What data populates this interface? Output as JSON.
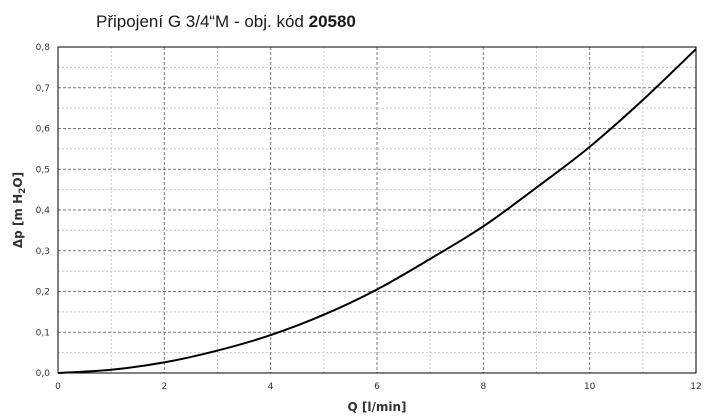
{
  "chart_data": {
    "type": "line",
    "title": "Připojení G 3/4“M - obj. kód",
    "title_code": "20580",
    "xlabel": "Q [l/min]",
    "ylabel_main": "Δp [m H",
    "ylabel_sub": "2",
    "ylabel_end": "O]",
    "xlim": [
      0,
      12
    ],
    "ylim": [
      0,
      0.8
    ],
    "x_ticks": [
      0,
      2,
      4,
      6,
      8,
      10,
      12
    ],
    "x_tick_labels": [
      "0",
      "2",
      "4",
      "6",
      "8",
      "10",
      "12"
    ],
    "y_ticks": [
      0,
      0.1,
      0.2,
      0.3,
      0.4,
      0.5,
      0.6,
      0.7,
      0.8
    ],
    "y_tick_labels": [
      "0,0",
      "0,1",
      "0,2",
      "0,3",
      "0,4",
      "0,5",
      "0,6",
      "0,7",
      "0,8"
    ],
    "grid": true,
    "series": [
      {
        "x": [
          0,
          1,
          2,
          3,
          4,
          5,
          6,
          7,
          8,
          9,
          10,
          11,
          12
        ],
        "y": [
          0,
          0.008,
          0.026,
          0.055,
          0.093,
          0.143,
          0.205,
          0.28,
          0.36,
          0.455,
          0.555,
          0.67,
          0.795
        ]
      }
    ]
  }
}
